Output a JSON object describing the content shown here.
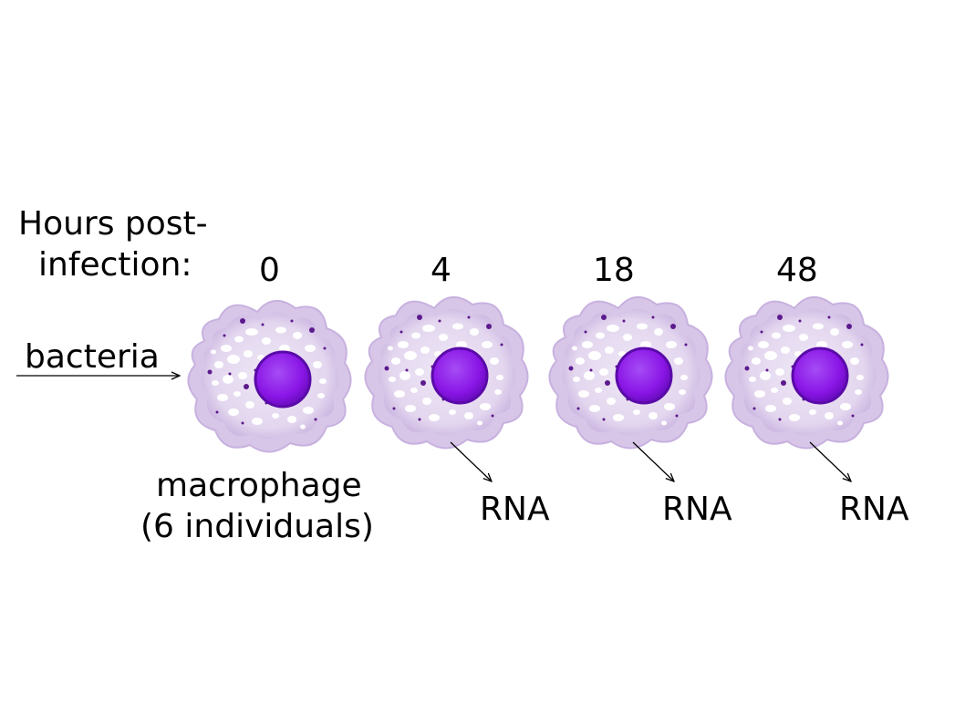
{
  "header": {
    "line1": "Hours post-",
    "line2": "infection:"
  },
  "timepoints": [
    {
      "label": "0",
      "output": ""
    },
    {
      "label": "4",
      "output": "RNA"
    },
    {
      "label": "18",
      "output": "RNA"
    },
    {
      "label": "48",
      "output": "RNA"
    }
  ],
  "input_label": "bacteria",
  "cell_label": {
    "line1": "macrophage",
    "line2": "(6 individuals)"
  },
  "colors": {
    "cell_membrane": "#cdb8e0",
    "cell_body": "#e4d8ef",
    "nucleus": "#8a16e6",
    "nucleus_edge": "#5a0aa8",
    "granule": "#5c1a8c",
    "text": "#000000"
  }
}
